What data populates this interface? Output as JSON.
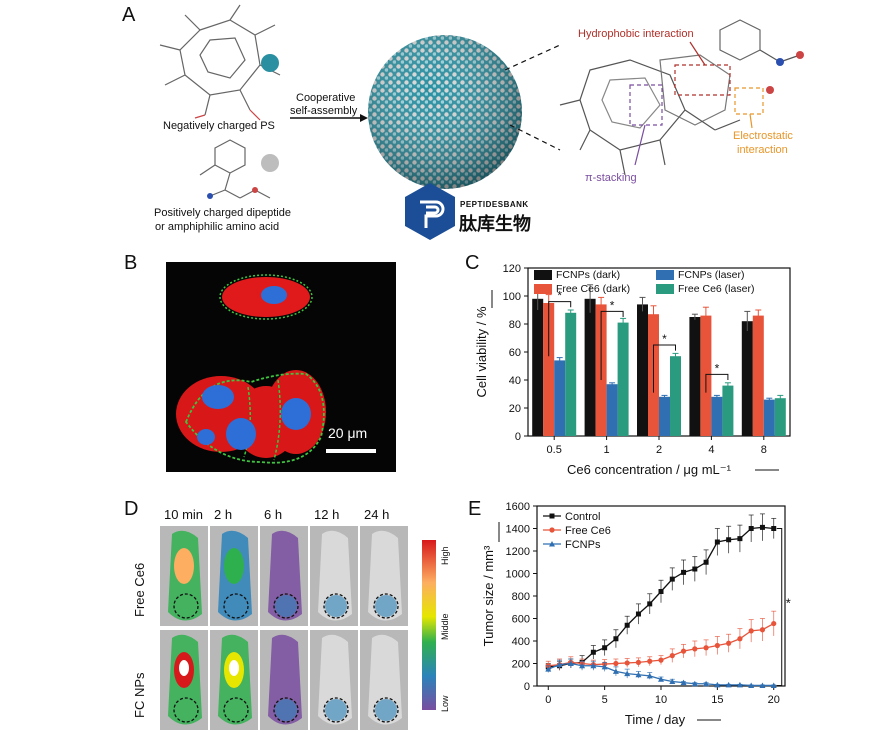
{
  "panel_labels": {
    "a": "A",
    "b": "B",
    "c": "C",
    "d": "D",
    "e": "E"
  },
  "panel_a": {
    "ps_label": "Negatively charged PS",
    "dipeptide_label_1": "Positively charged dipeptide",
    "dipeptide_label_2": "or amphiphilic amino acid",
    "arrow_label_1": "Cooperative",
    "arrow_label_2": "self-assembly",
    "hydrophobic": "Hydrophobic interaction",
    "electrostatic_1": "Electrostatic",
    "electrostatic_2": "interaction",
    "pi_stacking": "π-stacking",
    "logo_en": "PEPTIDESBANK",
    "logo_cn": "肽库生物",
    "colors": {
      "teal": "#2a8fa0",
      "gray": "#c8c8c8",
      "hydrophobic": "#b0302a",
      "electrostatic": "#e8962a",
      "pi": "#7a4ea0",
      "logo": "#1b4e96"
    }
  },
  "panel_b": {
    "scale_bar": "20 μm"
  },
  "panel_d": {
    "times": [
      "10 min",
      "2 h",
      "6 h",
      "12 h",
      "24 h"
    ],
    "rows": [
      "Free Ce6",
      "FC NPs"
    ],
    "colorbar": {
      "high": "High",
      "middle": "Middle",
      "low": "Low"
    }
  },
  "chart_data": [
    {
      "type": "bar",
      "panel": "C",
      "ylabel": "Cell viability / %",
      "xlabel": "Ce6 concentration / μg mL⁻¹",
      "ylim": [
        0,
        120
      ],
      "yticks": [
        0,
        20,
        40,
        60,
        80,
        100,
        120
      ],
      "categories": [
        "0.5",
        "1",
        "2",
        "4",
        "8"
      ],
      "legend_position": "top",
      "series": [
        {
          "name": "FCNPs (dark)",
          "color": "#111111",
          "values": [
            98,
            98,
            94,
            85,
            82
          ],
          "errors": [
            8,
            10,
            5,
            2,
            7
          ]
        },
        {
          "name": "Free Ce6 (dark)",
          "color": "#e8543a",
          "values": [
            95,
            94,
            87,
            86,
            86
          ],
          "errors": [
            6,
            5,
            6,
            6,
            4
          ]
        },
        {
          "name": "FCNPs (laser)",
          "color": "#2f6fb2",
          "values": [
            54,
            37,
            28,
            28,
            26
          ],
          "errors": [
            2,
            1,
            1,
            1,
            1
          ]
        },
        {
          "name": "Free Ce6 (laser)",
          "color": "#2a9b7f",
          "values": [
            88,
            81,
            57,
            36,
            27
          ],
          "errors": [
            2,
            3,
            2,
            2,
            2
          ]
        }
      ],
      "annotations": [
        "*",
        "*",
        "*",
        "*"
      ]
    },
    {
      "type": "line",
      "panel": "E",
      "ylabel": "Tumor size / mm³",
      "xlabel": "Time / day",
      "xlim": [
        -1,
        21
      ],
      "ylim": [
        0,
        1600
      ],
      "xticks": [
        0,
        5,
        10,
        15,
        20
      ],
      "yticks": [
        0,
        200,
        400,
        600,
        800,
        1000,
        1200,
        1400,
        1600
      ],
      "legend_position": "top-left",
      "significance": "*",
      "series": [
        {
          "name": "Control",
          "color": "#111111",
          "marker": "square",
          "x": [
            0,
            1,
            2,
            3,
            4,
            5,
            6,
            7,
            8,
            9,
            10,
            11,
            12,
            13,
            14,
            15,
            16,
            17,
            18,
            19,
            20
          ],
          "y": [
            170,
            180,
            200,
            210,
            300,
            340,
            420,
            540,
            640,
            730,
            840,
            950,
            1010,
            1040,
            1100,
            1280,
            1300,
            1310,
            1400,
            1410,
            1400
          ],
          "err": [
            30,
            40,
            40,
            60,
            60,
            70,
            80,
            80,
            90,
            90,
            100,
            100,
            110,
            110,
            110,
            120,
            120,
            120,
            120,
            120,
            90
          ]
        },
        {
          "name": "Free Ce6",
          "color": "#e8543a",
          "marker": "circle",
          "x": [
            0,
            1,
            2,
            3,
            4,
            5,
            6,
            7,
            8,
            9,
            10,
            11,
            12,
            13,
            14,
            15,
            16,
            17,
            18,
            19,
            20
          ],
          "y": [
            180,
            190,
            210,
            200,
            190,
            195,
            200,
            205,
            210,
            220,
            230,
            270,
            310,
            330,
            340,
            360,
            380,
            420,
            490,
            500,
            555
          ],
          "err": [
            40,
            50,
            50,
            40,
            40,
            40,
            40,
            40,
            40,
            40,
            40,
            60,
            60,
            70,
            70,
            80,
            80,
            90,
            100,
            100,
            110
          ]
        },
        {
          "name": "FCNPs",
          "color": "#2f6fb2",
          "marker": "triangle",
          "x": [
            0,
            1,
            2,
            3,
            4,
            5,
            6,
            7,
            8,
            9,
            10,
            11,
            12,
            13,
            14,
            15,
            16,
            17,
            18,
            19,
            20
          ],
          "y": [
            150,
            190,
            200,
            180,
            180,
            170,
            130,
            110,
            100,
            90,
            60,
            40,
            30,
            20,
            20,
            10,
            10,
            10,
            5,
            5,
            5
          ],
          "err": [
            30,
            40,
            40,
            40,
            40,
            40,
            40,
            40,
            30,
            30,
            20,
            20,
            10,
            10,
            10,
            5,
            5,
            5,
            5,
            5,
            5
          ]
        }
      ]
    }
  ]
}
